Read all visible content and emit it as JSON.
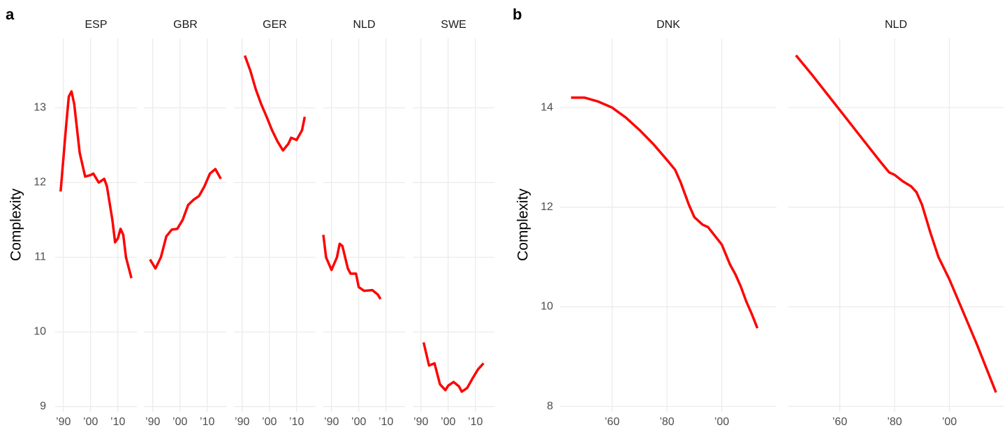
{
  "chart_data": [
    {
      "type": "line",
      "panel_label": "a",
      "ylabel": "Complexity",
      "color": "#ff0000",
      "grid": true,
      "xlim": [
        1987,
        2017
      ],
      "xticks": [
        {
          "value": 1990,
          "label": "’90"
        },
        {
          "value": 2000,
          "label": "’00"
        },
        {
          "value": 2010,
          "label": "’10"
        }
      ],
      "ylim": [
        8.93,
        13.93
      ],
      "yticks": [
        9,
        10,
        11,
        12,
        13
      ],
      "facets": [
        {
          "title": "ESP",
          "x": [
            1989,
            1991,
            1992,
            1993,
            1994,
            1996,
            1998,
            2000,
            2001,
            2003,
            2005,
            2006,
            2008,
            2009,
            2010,
            2011,
            2012,
            2013,
            2015
          ],
          "values": [
            11.88,
            12.75,
            13.15,
            13.22,
            13.05,
            12.4,
            12.08,
            12.1,
            12.12,
            12.0,
            12.05,
            11.95,
            11.5,
            11.2,
            11.25,
            11.38,
            11.3,
            11.0,
            10.72
          ]
        },
        {
          "title": "GBR",
          "x": [
            1989,
            1991,
            1993,
            1995,
            1997,
            1999,
            2001,
            2003,
            2005,
            2007,
            2009,
            2011,
            2013,
            2015
          ],
          "values": [
            10.97,
            10.85,
            11.0,
            11.28,
            11.37,
            11.38,
            11.5,
            11.7,
            11.77,
            11.82,
            11.95,
            12.12,
            12.18,
            12.05
          ]
        },
        {
          "title": "GER",
          "x": [
            1991,
            1993,
            1995,
            1997,
            1999,
            2001,
            2003,
            2005,
            2007,
            2008,
            2010,
            2012,
            2013
          ],
          "values": [
            13.7,
            13.5,
            13.25,
            13.05,
            12.88,
            12.7,
            12.55,
            12.43,
            12.52,
            12.6,
            12.57,
            12.7,
            12.88
          ]
        },
        {
          "title": "NLD",
          "x": [
            1987,
            1988,
            1990,
            1992,
            1993,
            1994,
            1996,
            1997,
            1999,
            2000,
            2002,
            2005,
            2007,
            2008
          ],
          "values": [
            11.3,
            11.0,
            10.83,
            11.0,
            11.18,
            11.15,
            10.85,
            10.78,
            10.78,
            10.6,
            10.55,
            10.56,
            10.5,
            10.44
          ]
        },
        {
          "title": "SWE",
          "x": [
            1991,
            1993,
            1995,
            1997,
            1999,
            2000,
            2002,
            2004,
            2005,
            2007,
            2009,
            2011,
            2013
          ],
          "values": [
            9.86,
            9.55,
            9.58,
            9.3,
            9.22,
            9.28,
            9.33,
            9.27,
            9.2,
            9.25,
            9.38,
            9.5,
            9.58
          ]
        }
      ]
    },
    {
      "type": "line",
      "panel_label": "b",
      "ylabel": "Complexity",
      "color": "#ff0000",
      "grid": true,
      "xlim": [
        1941,
        2020
      ],
      "xticks": [
        {
          "value": 1960,
          "label": "’60"
        },
        {
          "value": 1980,
          "label": "’80"
        },
        {
          "value": 2000,
          "label": "’00"
        }
      ],
      "ylim": [
        7.89,
        15.39
      ],
      "yticks": [
        8,
        10,
        12,
        14
      ],
      "facets": [
        {
          "title": "DNK",
          "x": [
            1945,
            1950,
            1955,
            1960,
            1965,
            1970,
            1975,
            1980,
            1983,
            1985,
            1988,
            1990,
            1993,
            1995,
            2000,
            2003,
            2005,
            2007,
            2009,
            2011,
            2013
          ],
          "values": [
            14.2,
            14.2,
            14.12,
            14.0,
            13.8,
            13.55,
            13.27,
            12.95,
            12.75,
            12.5,
            12.05,
            11.8,
            11.65,
            11.6,
            11.25,
            10.85,
            10.65,
            10.4,
            10.1,
            9.85,
            9.57
          ]
        },
        {
          "title": "NLD",
          "x": [
            1944,
            1950,
            1955,
            1960,
            1965,
            1970,
            1975,
            1978,
            1980,
            1983,
            1986,
            1988,
            1990,
            1993,
            1996,
            2000,
            2005,
            2010,
            2017
          ],
          "values": [
            15.05,
            14.65,
            14.3,
            13.95,
            13.6,
            13.25,
            12.9,
            12.7,
            12.65,
            12.52,
            12.42,
            12.3,
            12.05,
            11.5,
            11.0,
            10.55,
            9.9,
            9.25,
            8.28
          ]
        }
      ]
    }
  ]
}
